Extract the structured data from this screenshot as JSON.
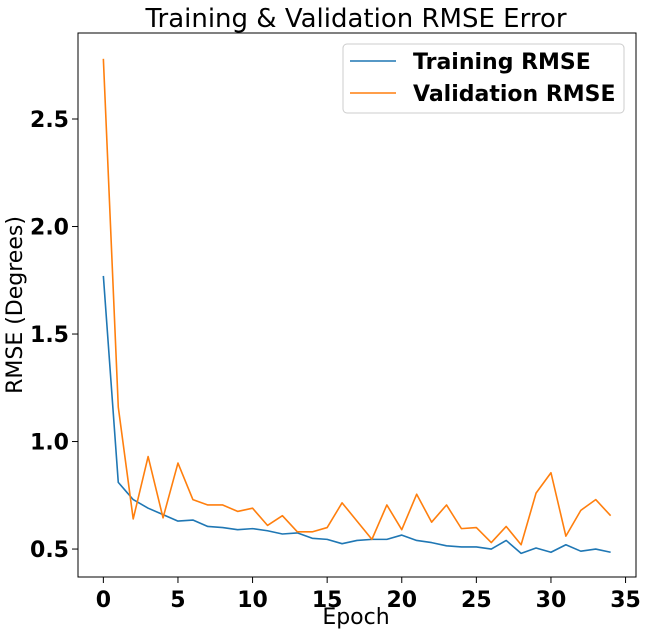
{
  "chart_data": {
    "type": "line",
    "title": "Training & Validation RMSE Error",
    "xlabel": "Epoch",
    "ylabel": "RMSE (Degrees)",
    "xlim": [
      -1.7,
      35.7
    ],
    "ylim": [
      0.37,
      2.9
    ],
    "xticks": [
      0,
      5,
      10,
      15,
      20,
      25,
      30,
      35
    ],
    "yticks": [
      0.5,
      1.0,
      1.5,
      2.0,
      2.5
    ],
    "ytick_labels": [
      "0.5",
      "1.0",
      "1.5",
      "2.0",
      "2.5"
    ],
    "grid": false,
    "legend_position": "top-right",
    "x": [
      0,
      1,
      2,
      3,
      4,
      5,
      6,
      7,
      8,
      9,
      10,
      11,
      12,
      13,
      14,
      15,
      16,
      17,
      18,
      19,
      20,
      21,
      22,
      23,
      24,
      25,
      26,
      27,
      28,
      29,
      30,
      31,
      32,
      33,
      34
    ],
    "series": [
      {
        "name": "Training RMSE",
        "color": "#1f77b4",
        "values": [
          1.77,
          0.81,
          0.73,
          0.69,
          0.66,
          0.63,
          0.635,
          0.605,
          0.6,
          0.59,
          0.595,
          0.585,
          0.57,
          0.575,
          0.55,
          0.545,
          0.525,
          0.54,
          0.545,
          0.545,
          0.565,
          0.54,
          0.53,
          0.515,
          0.51,
          0.51,
          0.5,
          0.54,
          0.48,
          0.505,
          0.485,
          0.52,
          0.49,
          0.5,
          0.485
        ]
      },
      {
        "name": "Validation RMSE",
        "color": "#ff7f0e",
        "values": [
          2.78,
          1.16,
          0.64,
          0.93,
          0.645,
          0.9,
          0.73,
          0.705,
          0.705,
          0.675,
          0.69,
          0.61,
          0.655,
          0.58,
          0.58,
          0.6,
          0.715,
          0.63,
          0.545,
          0.705,
          0.59,
          0.755,
          0.625,
          0.705,
          0.595,
          0.6,
          0.53,
          0.605,
          0.52,
          0.76,
          0.855,
          0.56,
          0.68,
          0.73,
          0.655
        ]
      }
    ]
  }
}
